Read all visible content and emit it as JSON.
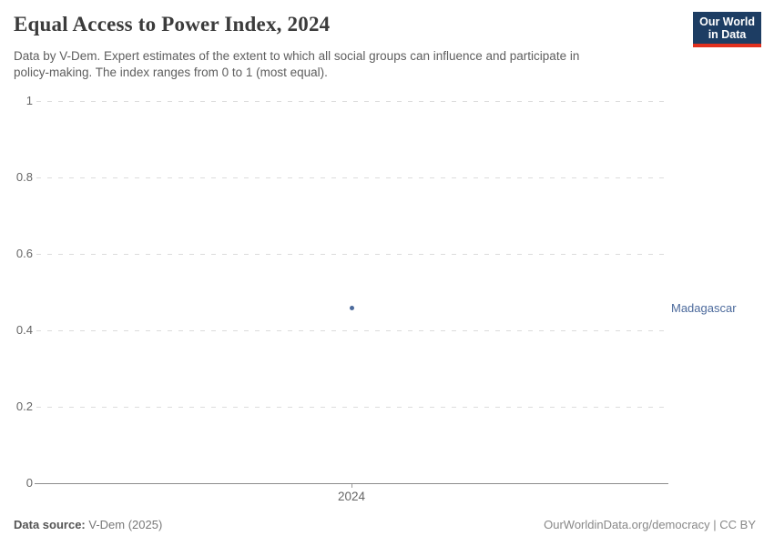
{
  "header": {
    "title": "Equal Access to Power Index, 2024",
    "subtitle_lines": [
      "Data by V-Dem. Expert estimates of the extent to which all social groups can influence and participate in",
      "policy-making. The index ranges from 0 to 1 (most equal)."
    ],
    "logo": {
      "line1": "Our World",
      "line2": "in Data",
      "bg_color": "#1d3d63",
      "accent_color": "#e0301e"
    }
  },
  "chart_data": {
    "type": "scatter",
    "title": "Equal Access to Power Index, 2024",
    "x": [
      2024
    ],
    "series": [
      {
        "name": "Madagascar",
        "values": [
          0.46
        ],
        "color": "#4c6a9c"
      }
    ],
    "xlabel": "",
    "ylabel": "",
    "ylim": [
      0,
      1
    ],
    "yticks": [
      0,
      0.2,
      0.4,
      0.6,
      0.8,
      1
    ],
    "xticks": [
      2024
    ],
    "grid": "horizontal-dashed",
    "legend": "entity-label-right",
    "colors": {
      "gridline": "#dcdcdc",
      "axis": "#8c8c8c",
      "tick_label": "#666666"
    }
  },
  "footer": {
    "source_label": "Data source:",
    "source_value": "V-Dem (2025)",
    "credit": "OurWorldinData.org/democracy | CC BY"
  }
}
